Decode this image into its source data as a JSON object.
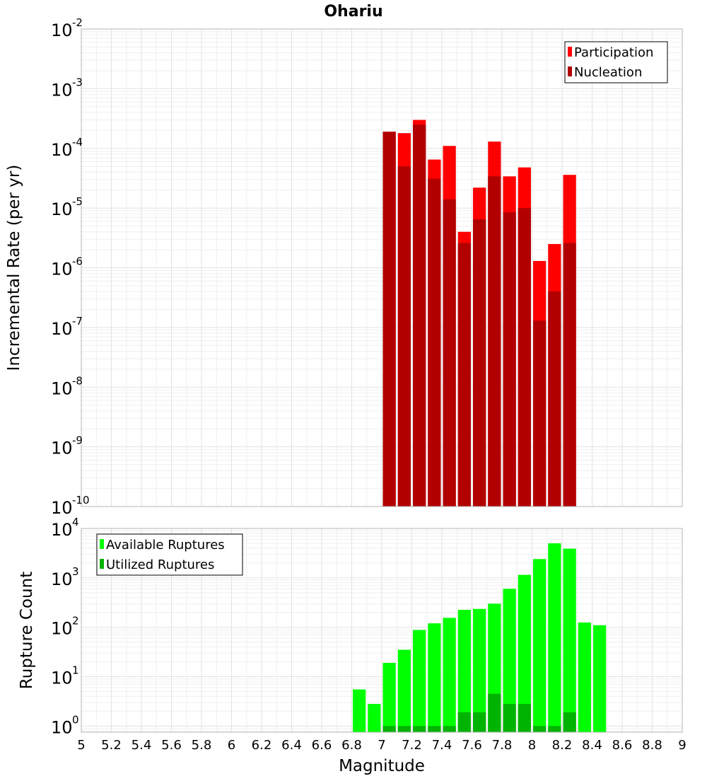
{
  "chart_data": [
    {
      "type": "bar",
      "title": "Ohariu",
      "ylabel": "Incremental Rate (per yr)",
      "xlabel": "",
      "scale_y": "log",
      "xlim": [
        5,
        9
      ],
      "ylim": [
        1e-10,
        0.01
      ],
      "bin_width": 0.1,
      "grid": true,
      "legend_position": "top-right",
      "y_tick_exponents": [
        "-10",
        "-9",
        "-8",
        "-7",
        "-6",
        "-5",
        "-4",
        "-3",
        "-2"
      ],
      "x": [
        7.05,
        7.15,
        7.25,
        7.35,
        7.45,
        7.55,
        7.65,
        7.75,
        7.85,
        7.95,
        8.05,
        8.15,
        8.25
      ],
      "series": [
        {
          "name": "Participation",
          "color": "#ff0000",
          "values": [
            0.00019,
            0.00018,
            0.0003,
            6.5e-05,
            0.00011,
            4e-06,
            2.2e-05,
            0.00013,
            3.4e-05,
            4.8e-05,
            1.3e-06,
            2.5e-06,
            3.6e-05
          ]
        },
        {
          "name": "Nucleation",
          "color": "#b20000",
          "values": [
            0.00019,
            5e-05,
            0.00025,
            3.1e-05,
            1.4e-05,
            2.6e-06,
            6.5e-06,
            3.4e-05,
            8.5e-06,
            1e-05,
            1.3e-07,
            4e-07,
            2.6e-06
          ]
        }
      ]
    },
    {
      "type": "bar",
      "title": "",
      "ylabel": "Rupture Count",
      "xlabel": "Magnitude",
      "scale_y": "log",
      "xlim": [
        5,
        9
      ],
      "ylim": [
        0.75,
        10000
      ],
      "bin_width": 0.1,
      "grid": true,
      "legend_position": "top-left",
      "y_tick_exponents": [
        "0",
        "1",
        "2",
        "3",
        "4"
      ],
      "x_ticks": [
        "5",
        "5.2",
        "5.4",
        "5.6",
        "5.8",
        "6",
        "6.2",
        "6.4",
        "6.6",
        "6.8",
        "7",
        "7.2",
        "7.4",
        "7.6",
        "7.8",
        "8",
        "8.2",
        "8.4",
        "8.6",
        "8.8",
        "9"
      ],
      "x": [
        6.85,
        6.95,
        7.05,
        7.15,
        7.25,
        7.35,
        7.45,
        7.55,
        7.65,
        7.75,
        7.85,
        7.95,
        8.05,
        8.15,
        8.25,
        8.35,
        8.45
      ],
      "series": [
        {
          "name": "Available Ruptures",
          "color": "#00ff00",
          "values": [
            5.5,
            2.8,
            19,
            35,
            88,
            120,
            155,
            225,
            235,
            300,
            600,
            1150,
            2400,
            5000,
            3900,
            125,
            110
          ]
        },
        {
          "name": "Utilized Ruptures",
          "color": "#00b300",
          "values": [
            0,
            0,
            1,
            1,
            1,
            1,
            1,
            1.9,
            1.9,
            4.5,
            2.8,
            2.8,
            1,
            1,
            1.9,
            0,
            0
          ]
        }
      ]
    }
  ]
}
